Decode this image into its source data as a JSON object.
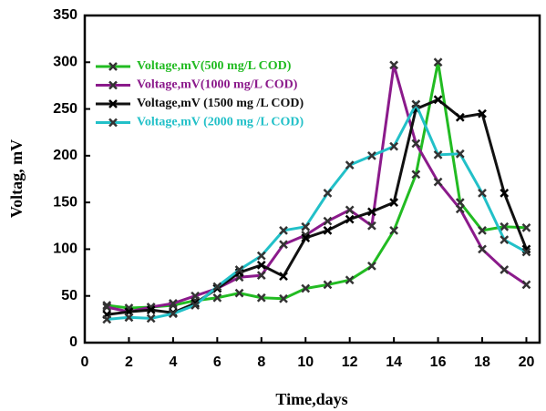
{
  "chart_data": {
    "type": "line",
    "x": [
      1,
      2,
      3,
      4,
      5,
      6,
      7,
      8,
      9,
      10,
      11,
      12,
      13,
      14,
      15,
      16,
      17,
      18,
      19,
      20
    ],
    "series": [
      {
        "name": "Voltage,mV(500 mg/L COD)",
        "color": "#22bb22",
        "values": [
          40,
          37,
          38,
          40,
          45,
          48,
          53,
          48,
          47,
          58,
          62,
          67,
          82,
          120,
          180,
          300,
          150,
          120,
          124,
          123
        ]
      },
      {
        "name": "Voltage,mV(1000 mg/L COD)",
        "color": "#8b1a8b",
        "values": [
          38,
          33,
          38,
          42,
          50,
          58,
          70,
          72,
          105,
          115,
          130,
          142,
          125,
          297,
          213,
          172,
          143,
          100,
          78,
          62
        ]
      },
      {
        "name": "Voltage,mV (1500 mg /L COD)",
        "color": "#111111",
        "values": [
          30,
          33,
          35,
          32,
          42,
          58,
          75,
          83,
          71,
          112,
          120,
          132,
          140,
          150,
          250,
          260,
          241,
          245,
          160,
          100
        ]
      },
      {
        "name": "Voltage,mV (2000 mg /L COD)",
        "color": "#22c0c8",
        "values": [
          25,
          27,
          26,
          31,
          40,
          60,
          78,
          93,
          120,
          124,
          160,
          190,
          200,
          210,
          255,
          201,
          202,
          160,
          110,
          97
        ]
      }
    ],
    "xlabel": "Time,days",
    "ylabel": "Voltag, mV",
    "xlim": [
      0,
      20.6
    ],
    "xticks": [
      0,
      2,
      4,
      6,
      8,
      10,
      12,
      14,
      16,
      18,
      20
    ],
    "ylim": [
      0,
      350
    ],
    "yticks": [
      0,
      50,
      100,
      150,
      200,
      250,
      300,
      350
    ],
    "legend": "upper-left"
  }
}
